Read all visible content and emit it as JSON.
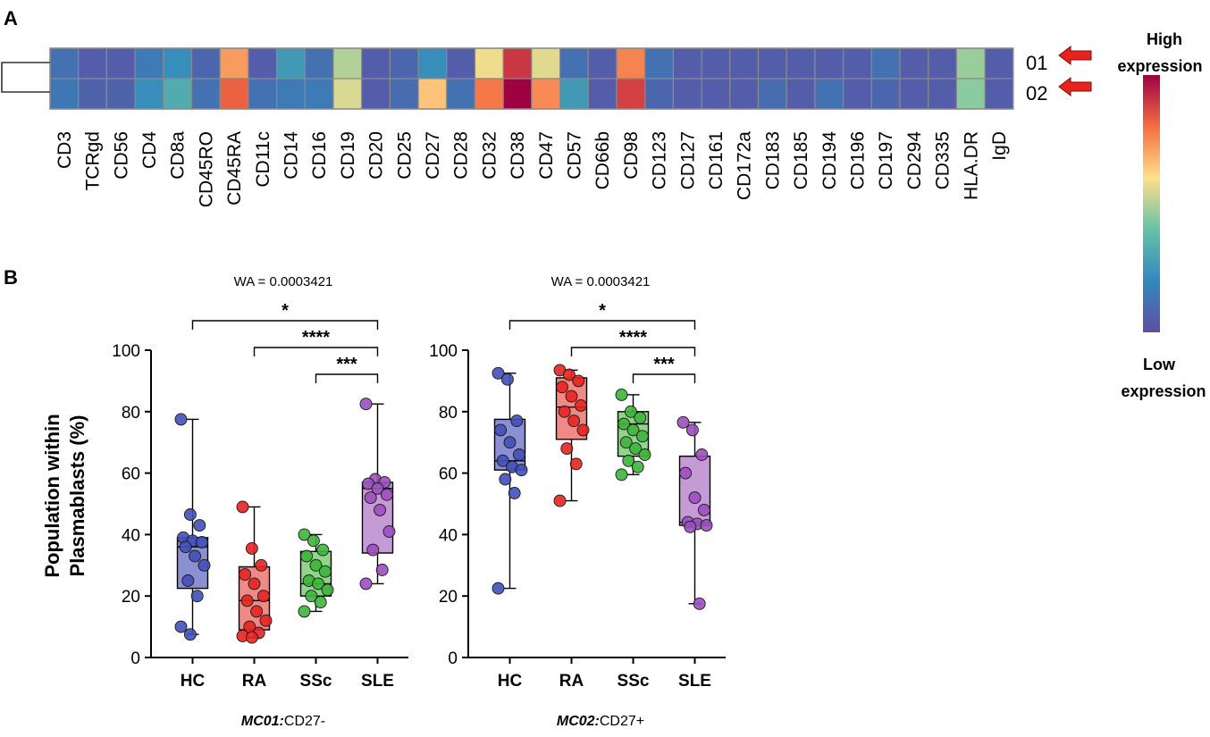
{
  "panel_a_label": "A",
  "panel_b_label": "B",
  "legend": {
    "high_line1": "High",
    "high_line2": "expression",
    "low_line1": "Low",
    "low_line2": "expression"
  },
  "chart_data": [
    {
      "type": "heatmap",
      "title": "",
      "rows": [
        "01",
        "02"
      ],
      "columns": [
        "CD3",
        "TCRgd",
        "CD56",
        "CD4",
        "CD8a",
        "CD45RO",
        "CD45RA",
        "CD11c",
        "CD14",
        "CD16",
        "CD19",
        "CD20",
        "CD25",
        "CD27",
        "CD28",
        "CD32",
        "CD38",
        "CD47",
        "CD57",
        "CD66b",
        "CD98",
        "CD123",
        "CD127",
        "CD161",
        "CD172a",
        "CD183",
        "CD185",
        "CD194",
        "CD196",
        "CD197",
        "CD294",
        "CD335",
        "HLA.DR",
        "IgD"
      ],
      "values": [
        [
          0.12,
          0.05,
          0.05,
          0.15,
          0.22,
          0.08,
          0.72,
          0.05,
          0.26,
          0.12,
          0.5,
          0.05,
          0.08,
          0.22,
          0.05,
          0.58,
          0.9,
          0.56,
          0.12,
          0.05,
          0.76,
          0.12,
          0.05,
          0.05,
          0.05,
          0.05,
          0.05,
          0.05,
          0.05,
          0.12,
          0.05,
          0.05,
          0.47,
          0.05
        ],
        [
          0.14,
          0.07,
          0.07,
          0.22,
          0.32,
          0.12,
          0.82,
          0.12,
          0.15,
          0.15,
          0.55,
          0.05,
          0.1,
          0.65,
          0.12,
          0.78,
          1.0,
          0.75,
          0.26,
          0.05,
          0.88,
          0.08,
          0.05,
          0.05,
          0.05,
          0.1,
          0.05,
          0.12,
          0.05,
          0.08,
          0.05,
          0.05,
          0.45,
          0.05
        ]
      ],
      "color_scale": [
        "#5e4fa2",
        "#3288bd",
        "#66c2a5",
        "#fee08b",
        "#f46d43",
        "#9e0142"
      ],
      "value_range": [
        0,
        1
      ]
    },
    {
      "type": "box",
      "title": "WA = 0.0003421",
      "xlabel": "MC01:CD27-",
      "xlabel_italic": "MC01:",
      "xlabel_rest": "CD27-",
      "ylabel_line1": "Population within",
      "ylabel_line2": "Plasmablasts (%)",
      "ylim": [
        0,
        100
      ],
      "yticks": [
        0,
        20,
        40,
        60,
        80,
        100
      ],
      "categories": [
        "HC",
        "RA",
        "SSc",
        "SLE"
      ],
      "colors": {
        "HC": "#4250b8",
        "RA": "#e52421",
        "SSc": "#3db53a",
        "SLE": "#9c4fbf"
      },
      "fills": {
        "HC": "#8a90d2",
        "RA": "#f08a88",
        "SSc": "#92d48c",
        "SLE": "#c59bd6"
      },
      "boxes": [
        {
          "category": "HC",
          "min": 7.5,
          "q1": 22.5,
          "median": 36,
          "q3": 39,
          "max": 77.5
        },
        {
          "category": "RA",
          "min": 6.5,
          "q1": 9,
          "median": 18.5,
          "q3": 29.5,
          "max": 49
        },
        {
          "category": "SSc",
          "min": 15,
          "q1": 20,
          "median": 24,
          "q3": 34.5,
          "max": 40
        },
        {
          "category": "SLE",
          "min": 24,
          "q1": 34,
          "median": 55,
          "q3": 57,
          "max": 82.5
        }
      ],
      "points": {
        "HC": [
          77.5,
          46.5,
          43,
          39,
          38,
          37.5,
          36,
          33,
          30,
          25,
          20,
          10,
          7.5
        ],
        "RA": [
          49,
          35.5,
          30,
          27,
          24,
          20,
          18.5,
          15,
          12,
          10,
          8,
          7,
          6.5
        ],
        "SSc": [
          40,
          38,
          35,
          33,
          30,
          28,
          25,
          24,
          22,
          20,
          18,
          15
        ],
        "SLE": [
          82.5,
          58,
          57,
          56.5,
          55,
          53,
          52,
          48,
          41,
          35,
          28.5,
          24
        ]
      },
      "significance": [
        {
          "from": "HC",
          "to": "SLE",
          "label": "*"
        },
        {
          "from": "RA",
          "to": "SLE",
          "label": "****"
        },
        {
          "from": "SSc",
          "to": "SLE",
          "label": "***"
        }
      ]
    },
    {
      "type": "box",
      "title": "WA = 0.0003421",
      "xlabel": "MC02:CD27+",
      "xlabel_italic": "MC02:",
      "xlabel_rest": "CD27+",
      "ylim": [
        0,
        100
      ],
      "yticks": [
        0,
        20,
        40,
        60,
        80,
        100
      ],
      "categories": [
        "HC",
        "RA",
        "SSc",
        "SLE"
      ],
      "colors": {
        "HC": "#4250b8",
        "RA": "#e52421",
        "SSc": "#3db53a",
        "SLE": "#9c4fbf"
      },
      "fills": {
        "HC": "#8a90d2",
        "RA": "#f08a88",
        "SSc": "#92d48c",
        "SLE": "#c59bd6"
      },
      "boxes": [
        {
          "category": "HC",
          "min": 22.5,
          "q1": 61,
          "median": 64,
          "q3": 77.5,
          "max": 92.5
        },
        {
          "category": "RA",
          "min": 51,
          "q1": 71,
          "median": 81.5,
          "q3": 91,
          "max": 93.5
        },
        {
          "category": "SSc",
          "min": 59.5,
          "q1": 65.5,
          "median": 76,
          "q3": 80,
          "max": 85.5
        },
        {
          "category": "SLE",
          "min": 17.5,
          "q1": 43,
          "median": 44,
          "q3": 65.5,
          "max": 76.5
        }
      ],
      "points": {
        "HC": [
          92.5,
          90.5,
          77,
          74,
          70,
          66,
          64,
          62,
          61,
          58,
          53.5,
          22.5
        ],
        "RA": [
          93.5,
          92,
          90,
          88,
          85,
          82,
          80,
          77,
          74,
          68,
          63,
          51
        ],
        "SSc": [
          85.5,
          80,
          78,
          76,
          74,
          72,
          70,
          68,
          66,
          64,
          62,
          59.5
        ],
        "SLE": [
          76.5,
          74,
          66,
          60,
          52,
          48,
          44,
          43.5,
          43,
          42.5,
          17.5
        ]
      },
      "significance": [
        {
          "from": "HC",
          "to": "SLE",
          "label": "*"
        },
        {
          "from": "RA",
          "to": "SLE",
          "label": "****"
        },
        {
          "from": "SSc",
          "to": "SLE",
          "label": "***"
        }
      ]
    }
  ]
}
